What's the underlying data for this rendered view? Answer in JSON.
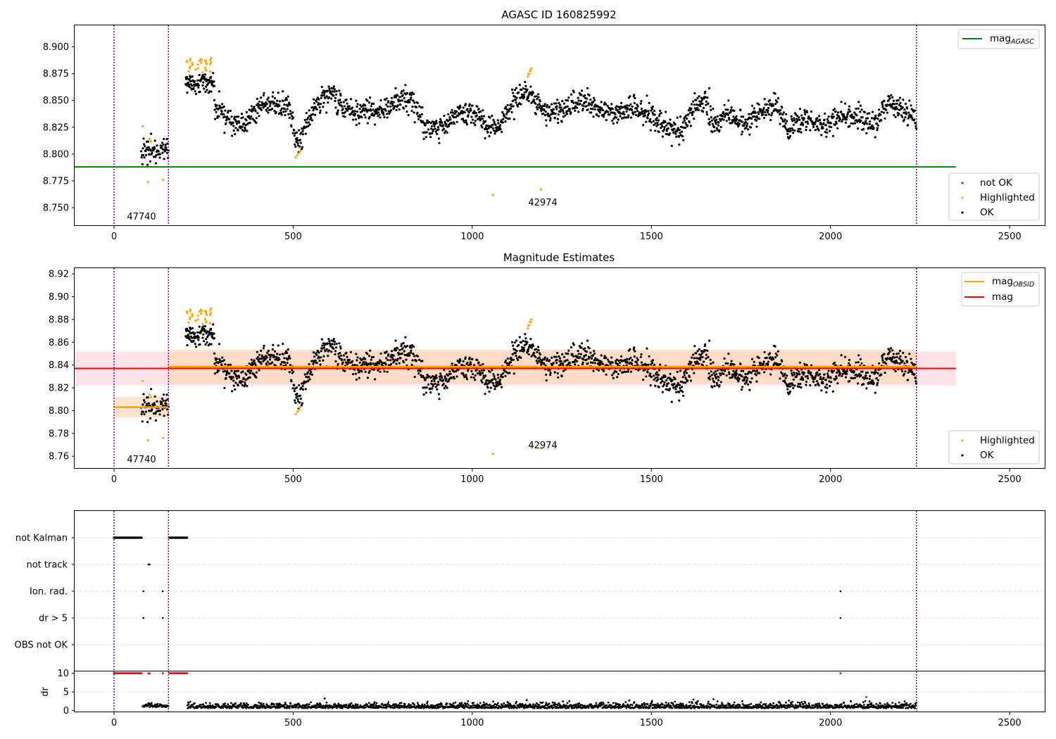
{
  "colors": {
    "ok": "#000000",
    "highlighted": "#ffa500",
    "not_ok": "#ff0000",
    "mag_agasc": "#008000",
    "mag": "#ff0000",
    "mag_obsid": "#ffa500",
    "obsid_divider": "#800080",
    "mag_band": "#ffc0cb",
    "obsid_band": "#ffdab9"
  },
  "chart_data": [
    {
      "type": "scatter",
      "title": "AGASC ID 160825992",
      "xlabel": "",
      "ylabel": "",
      "xlim": [
        -110,
        2600
      ],
      "ylim": [
        8.733,
        8.92
      ],
      "xticks": [
        "0",
        "500",
        "1000",
        "1500",
        "2000",
        "2500"
      ],
      "yticks": [
        "8.750",
        "8.775",
        "8.800",
        "8.825",
        "8.850",
        "8.875",
        "8.900"
      ],
      "obsid_boundaries": [
        0,
        152,
        2240
      ],
      "obsids": [
        {
          "label": "47740",
          "x_start": 0,
          "x_end": 152
        },
        {
          "label": "42974",
          "x_start": 152,
          "x_end": 2240
        }
      ],
      "lines": [
        {
          "name": "mag_AGASC",
          "y": 8.788,
          "x_range": [
            -110,
            2350
          ]
        }
      ],
      "legends": [
        {
          "position": "upper-right",
          "entries": [
            {
              "label": "mag",
              "sub": "AGASC",
              "kind": "line",
              "color": "#008000"
            }
          ]
        },
        {
          "position": "lower-right",
          "entries": [
            {
              "label": "not OK",
              "kind": "dot",
              "color": "#ff0000"
            },
            {
              "label": "Highlighted",
              "kind": "dot",
              "color": "#ffa500"
            },
            {
              "label": "OK",
              "kind": "dot",
              "color": "#000000"
            }
          ]
        }
      ],
      "grid": false
    },
    {
      "type": "scatter",
      "title": "Magnitude Estimates",
      "xlabel": "",
      "ylabel": "",
      "xlim": [
        -110,
        2600
      ],
      "ylim": [
        8.749,
        8.925
      ],
      "xticks": [
        "0",
        "500",
        "1000",
        "1500",
        "2000",
        "2500"
      ],
      "yticks": [
        "8.76",
        "8.78",
        "8.80",
        "8.82",
        "8.84",
        "8.86",
        "8.88",
        "8.90",
        "8.92"
      ],
      "obsid_boundaries": [
        0,
        152,
        2240
      ],
      "obsids": [
        {
          "label": "47740",
          "x_start": 0,
          "x_end": 152,
          "mag": 8.803,
          "mag_err": 0.009
        },
        {
          "label": "42974",
          "x_start": 152,
          "x_end": 2240,
          "mag": 8.8385,
          "mag_err": 0.015
        }
      ],
      "lines": [
        {
          "name": "mag",
          "y": 8.837,
          "band": [
            8.822,
            8.852
          ],
          "x_range": [
            -110,
            2350
          ]
        }
      ],
      "legends": [
        {
          "position": "upper-right",
          "entries": [
            {
              "label": "mag",
              "sub": "OBSID",
              "kind": "line",
              "color": "#ffa500"
            },
            {
              "label": "mag",
              "kind": "line",
              "color": "#ff0000"
            }
          ]
        },
        {
          "position": "lower-right",
          "entries": [
            {
              "label": "Highlighted",
              "kind": "dot",
              "color": "#ffa500"
            },
            {
              "label": "OK",
              "kind": "dot",
              "color": "#000000"
            }
          ]
        }
      ],
      "grid": false
    },
    {
      "type": "scatter",
      "title": "",
      "xlabel": "",
      "ylabel": "",
      "xlim": [
        -110,
        2600
      ],
      "categories": [
        "not Kalman",
        "not track",
        "Ion. rad.",
        "dr > 5",
        "OBS not OK"
      ],
      "flags": [
        {
          "category": "not Kalman",
          "ranges": [
            [
              0,
              78
            ],
            [
              155,
              205
            ]
          ],
          "points": []
        },
        {
          "category": "not track",
          "ranges": [],
          "points": [
            96,
            99
          ]
        },
        {
          "category": "Ion. rad.",
          "ranges": [],
          "points": [
            82,
            136,
            2028
          ]
        },
        {
          "category": "dr > 5",
          "ranges": [],
          "points": [
            82,
            136,
            2028
          ]
        },
        {
          "category": "OBS not OK",
          "ranges": [],
          "points": []
        }
      ],
      "obsid_boundaries": [
        0,
        152,
        2240
      ],
      "grid": "horizontal-dotted"
    },
    {
      "type": "scatter",
      "title": "",
      "xlabel": "",
      "ylabel": "dr",
      "xlim": [
        -110,
        2600
      ],
      "ylim": [
        -0.5,
        10.5
      ],
      "xticks": [
        "0",
        "500",
        "1000",
        "1500",
        "2000",
        "2500"
      ],
      "yticks": [
        "0",
        "5",
        "10"
      ],
      "capped_points_color": "#ff0000",
      "capped_ranges": [
        [
          0,
          78
        ],
        [
          155,
          205
        ]
      ],
      "capped_points": [
        96,
        99,
        136,
        2028
      ],
      "outlier_points": [
        {
          "x": 2100,
          "y": 3.6
        }
      ],
      "obsid_boundaries": [
        0,
        152,
        2240
      ],
      "grid": "horizontal-dotted"
    }
  ]
}
